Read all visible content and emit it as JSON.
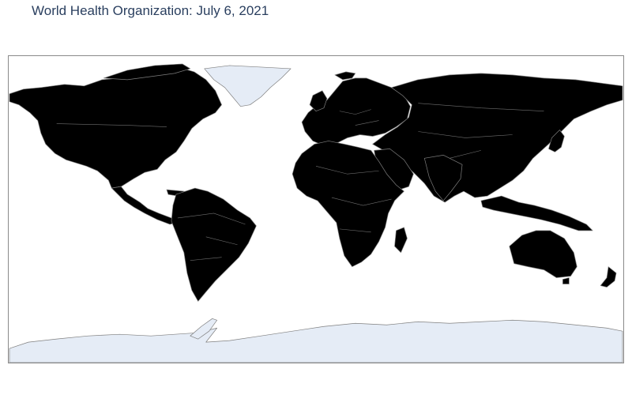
{
  "title": "World Health Organization: July 6, 2021",
  "colors": {
    "title_text": "#2a3f5f",
    "country_fill": "#000000",
    "no_data_fill": "#e5ecf6",
    "country_border": "#7f7f7f",
    "ocean": "#ffffff",
    "frame": "#8a8a8a"
  },
  "map": {
    "projection": "equirectangular",
    "regions_no_data": [
      "Greenland",
      "Antarctica"
    ]
  }
}
